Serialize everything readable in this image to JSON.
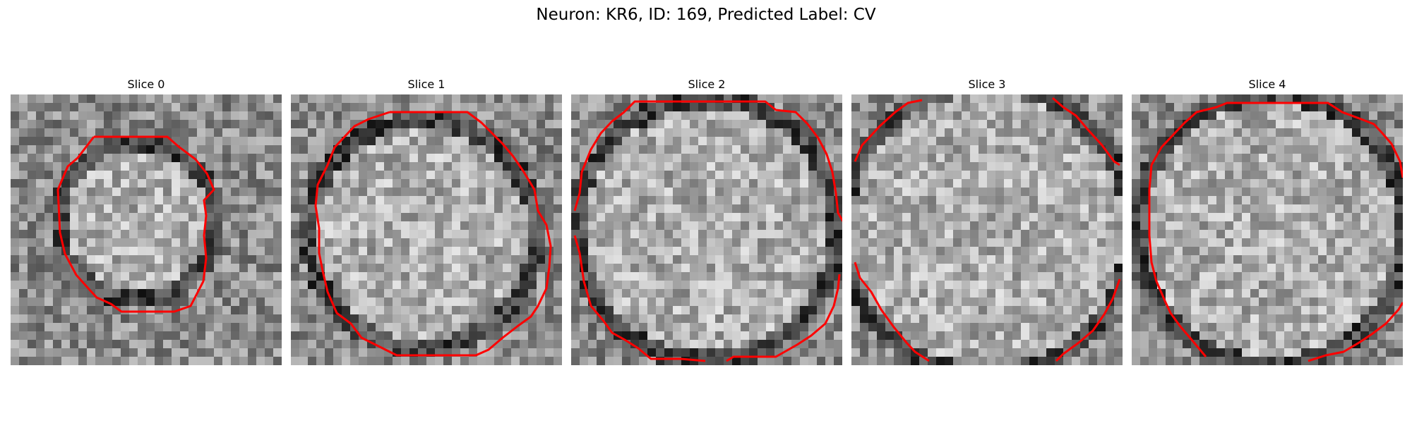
{
  "figure": {
    "title": "Neuron: KR6, ID: 169, Predicted Label: CV",
    "contour_color": "#ff0000",
    "panels": [
      {
        "title": "Slice 0"
      },
      {
        "title": "Slice 1"
      },
      {
        "title": "Slice 2"
      },
      {
        "title": "Slice 3"
      },
      {
        "title": "Slice 4"
      }
    ]
  }
}
